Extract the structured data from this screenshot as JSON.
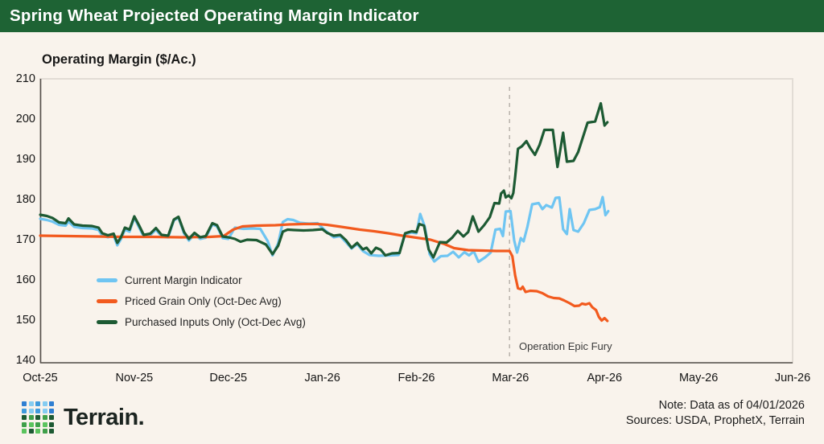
{
  "header": {
    "title": "Spring Wheat Projected Operating Margin Indicator",
    "bg_color": "#1e6334"
  },
  "chart_data": {
    "type": "line",
    "title": "Spring Wheat Projected Operating Margin Indicator",
    "ylabel": "Operating Margin ($/Ac.)",
    "xlabel": "",
    "ylim": [
      140,
      210
    ],
    "y_ticks": [
      210,
      200,
      190,
      180,
      170,
      160,
      150,
      140
    ],
    "x_tick_labels": [
      "Oct-25",
      "Nov-25",
      "Dec-25",
      "Jan-26",
      "Feb-26",
      "Mar-26",
      "Apr-26",
      "May-26",
      "Jun-26"
    ],
    "x_unit": "month index, Oct-25 = 0",
    "xlim": [
      0,
      8
    ],
    "grid": false,
    "legend_position": "inside lower-left",
    "annotation": {
      "label": "Operation Epic Fury",
      "x_month": 4.99,
      "line_style": "dashed",
      "line_color": "#b8b2ab"
    },
    "series": [
      {
        "name": "Current Margin Indicator",
        "color": "#6fc5f2",
        "points": [
          [
            0.0,
            175.6
          ],
          [
            0.07,
            175.3
          ],
          [
            0.13,
            174.9
          ],
          [
            0.2,
            174.1
          ],
          [
            0.27,
            173.9
          ],
          [
            0.3,
            174.9
          ],
          [
            0.36,
            173.6
          ],
          [
            0.45,
            173.3
          ],
          [
            0.55,
            173.2
          ],
          [
            0.62,
            172.8
          ],
          [
            0.66,
            171.4
          ],
          [
            0.72,
            171.0
          ],
          [
            0.78,
            171.4
          ],
          [
            0.82,
            169.0
          ],
          [
            0.86,
            170.6
          ],
          [
            0.9,
            172.9
          ],
          [
            0.95,
            172.4
          ],
          [
            1.0,
            175.9
          ],
          [
            1.05,
            173.5
          ],
          [
            1.1,
            171.2
          ],
          [
            1.17,
            171.5
          ],
          [
            1.23,
            172.9
          ],
          [
            1.29,
            171.2
          ],
          [
            1.36,
            171.0
          ],
          [
            1.42,
            175.2
          ],
          [
            1.47,
            175.9
          ],
          [
            1.53,
            171.9
          ],
          [
            1.58,
            170.2
          ],
          [
            1.64,
            171.7
          ],
          [
            1.7,
            170.6
          ],
          [
            1.76,
            170.9
          ],
          [
            1.83,
            174.2
          ],
          [
            1.88,
            173.7
          ],
          [
            1.94,
            170.8
          ],
          [
            2.0,
            170.6
          ],
          [
            2.07,
            173.4
          ],
          [
            2.16,
            173.1
          ],
          [
            2.25,
            173.2
          ],
          [
            2.34,
            173.1
          ],
          [
            2.42,
            170.0
          ],
          [
            2.47,
            166.5
          ],
          [
            2.53,
            169.5
          ],
          [
            2.58,
            174.8
          ],
          [
            2.63,
            175.5
          ],
          [
            2.69,
            175.3
          ],
          [
            2.76,
            174.6
          ],
          [
            2.86,
            174.4
          ],
          [
            2.95,
            174.5
          ],
          [
            3.01,
            173.1
          ],
          [
            3.06,
            172.1
          ],
          [
            3.12,
            171.0
          ],
          [
            3.19,
            171.3
          ],
          [
            3.25,
            169.8
          ],
          [
            3.31,
            168.2
          ],
          [
            3.37,
            169.3
          ],
          [
            3.43,
            167.6
          ],
          [
            3.5,
            166.6
          ],
          [
            3.6,
            166.4
          ],
          [
            3.72,
            166.5
          ],
          [
            3.81,
            166.6
          ],
          [
            3.88,
            171.8
          ],
          [
            3.95,
            172.2
          ],
          [
            4.0,
            172.0
          ],
          [
            4.04,
            176.8
          ],
          [
            4.09,
            173.6
          ],
          [
            4.14,
            166.8
          ],
          [
            4.19,
            165.0
          ],
          [
            4.26,
            166.3
          ],
          [
            4.33,
            166.4
          ],
          [
            4.39,
            167.4
          ],
          [
            4.45,
            166.0
          ],
          [
            4.51,
            167.3
          ],
          [
            4.56,
            166.5
          ],
          [
            4.61,
            167.5
          ],
          [
            4.66,
            164.9
          ],
          [
            4.73,
            166.0
          ],
          [
            4.79,
            167.2
          ],
          [
            4.84,
            172.9
          ],
          [
            4.89,
            173.1
          ],
          [
            4.92,
            171.3
          ],
          [
            4.95,
            177.4
          ],
          [
            5.0,
            177.5
          ],
          [
            5.04,
            170.2
          ],
          [
            5.07,
            167.2
          ],
          [
            5.11,
            170.8
          ],
          [
            5.14,
            170.0
          ],
          [
            5.18,
            173.6
          ],
          [
            5.23,
            179.2
          ],
          [
            5.3,
            179.5
          ],
          [
            5.34,
            178.0
          ],
          [
            5.38,
            179.0
          ],
          [
            5.44,
            178.4
          ],
          [
            5.48,
            180.8
          ],
          [
            5.52,
            180.9
          ],
          [
            5.56,
            173.0
          ],
          [
            5.6,
            171.8
          ],
          [
            5.63,
            178.0
          ],
          [
            5.67,
            172.8
          ],
          [
            5.72,
            172.4
          ],
          [
            5.78,
            174.5
          ],
          [
            5.84,
            177.8
          ],
          [
            5.9,
            178.0
          ],
          [
            5.95,
            178.5
          ],
          [
            5.98,
            181.0
          ],
          [
            6.01,
            176.5
          ],
          [
            6.04,
            177.5
          ]
        ]
      },
      {
        "name": "Priced Grain Only (Oct-Dec Avg)",
        "color": "#f25a1e",
        "points": [
          [
            0.0,
            171.4
          ],
          [
            0.3,
            171.3
          ],
          [
            0.6,
            171.2
          ],
          [
            0.9,
            171.1
          ],
          [
            1.2,
            171.1
          ],
          [
            1.5,
            171.0
          ],
          [
            1.8,
            171.1
          ],
          [
            1.95,
            171.3
          ],
          [
            2.05,
            172.9
          ],
          [
            2.15,
            173.7
          ],
          [
            2.3,
            173.9
          ],
          [
            2.5,
            174.0
          ],
          [
            2.65,
            174.2
          ],
          [
            2.8,
            174.3
          ],
          [
            2.95,
            174.3
          ],
          [
            3.05,
            174.1
          ],
          [
            3.2,
            173.6
          ],
          [
            3.4,
            172.9
          ],
          [
            3.55,
            172.5
          ],
          [
            3.7,
            172.0
          ],
          [
            3.85,
            171.4
          ],
          [
            4.0,
            170.9
          ],
          [
            4.15,
            170.4
          ],
          [
            4.3,
            169.3
          ],
          [
            4.4,
            168.3
          ],
          [
            4.55,
            167.8
          ],
          [
            4.7,
            167.7
          ],
          [
            4.85,
            167.6
          ],
          [
            4.99,
            167.6
          ],
          [
            5.02,
            166.3
          ],
          [
            5.05,
            161.5
          ],
          [
            5.08,
            158.3
          ],
          [
            5.11,
            158.1
          ],
          [
            5.13,
            158.7
          ],
          [
            5.16,
            157.4
          ],
          [
            5.21,
            157.7
          ],
          [
            5.28,
            157.6
          ],
          [
            5.34,
            157.1
          ],
          [
            5.4,
            156.3
          ],
          [
            5.46,
            155.9
          ],
          [
            5.52,
            155.8
          ],
          [
            5.57,
            155.3
          ],
          [
            5.63,
            154.6
          ],
          [
            5.68,
            153.9
          ],
          [
            5.73,
            154.0
          ],
          [
            5.76,
            154.5
          ],
          [
            5.8,
            154.3
          ],
          [
            5.84,
            154.6
          ],
          [
            5.87,
            153.6
          ],
          [
            5.91,
            152.9
          ],
          [
            5.94,
            151.2
          ],
          [
            5.97,
            150.3
          ],
          [
            6.0,
            150.9
          ],
          [
            6.03,
            150.2
          ]
        ]
      },
      {
        "name": "Purchased Inputs Only (Oct-Dec Avg)",
        "color": "#1d5a33",
        "points": [
          [
            0.0,
            176.6
          ],
          [
            0.07,
            176.3
          ],
          [
            0.13,
            175.8
          ],
          [
            0.2,
            174.7
          ],
          [
            0.27,
            174.5
          ],
          [
            0.3,
            175.7
          ],
          [
            0.36,
            174.2
          ],
          [
            0.45,
            173.9
          ],
          [
            0.55,
            173.8
          ],
          [
            0.62,
            173.4
          ],
          [
            0.66,
            172.0
          ],
          [
            0.72,
            171.5
          ],
          [
            0.78,
            171.9
          ],
          [
            0.82,
            169.6
          ],
          [
            0.86,
            171.1
          ],
          [
            0.9,
            173.4
          ],
          [
            0.95,
            172.9
          ],
          [
            1.0,
            176.2
          ],
          [
            1.05,
            174.0
          ],
          [
            1.1,
            171.6
          ],
          [
            1.17,
            171.9
          ],
          [
            1.23,
            173.3
          ],
          [
            1.29,
            171.6
          ],
          [
            1.36,
            171.4
          ],
          [
            1.42,
            175.4
          ],
          [
            1.47,
            176.1
          ],
          [
            1.53,
            172.3
          ],
          [
            1.58,
            170.6
          ],
          [
            1.64,
            172.1
          ],
          [
            1.7,
            171.0
          ],
          [
            1.76,
            171.3
          ],
          [
            1.83,
            174.5
          ],
          [
            1.88,
            174.0
          ],
          [
            1.94,
            171.2
          ],
          [
            2.0,
            171.0
          ],
          [
            2.07,
            170.6
          ],
          [
            2.13,
            169.9
          ],
          [
            2.2,
            170.4
          ],
          [
            2.3,
            170.3
          ],
          [
            2.4,
            169.2
          ],
          [
            2.47,
            166.8
          ],
          [
            2.53,
            168.9
          ],
          [
            2.58,
            172.4
          ],
          [
            2.63,
            172.9
          ],
          [
            2.7,
            172.8
          ],
          [
            2.8,
            172.7
          ],
          [
            2.9,
            172.8
          ],
          [
            3.0,
            173.0
          ],
          [
            3.05,
            172.1
          ],
          [
            3.12,
            171.4
          ],
          [
            3.19,
            171.6
          ],
          [
            3.25,
            170.3
          ],
          [
            3.31,
            168.4
          ],
          [
            3.37,
            169.6
          ],
          [
            3.43,
            168.0
          ],
          [
            3.47,
            168.4
          ],
          [
            3.52,
            167.0
          ],
          [
            3.57,
            168.4
          ],
          [
            3.62,
            167.9
          ],
          [
            3.67,
            166.5
          ],
          [
            3.74,
            167.0
          ],
          [
            3.82,
            167.1
          ],
          [
            3.88,
            172.0
          ],
          [
            3.95,
            172.5
          ],
          [
            4.0,
            172.3
          ],
          [
            4.03,
            174.3
          ],
          [
            4.08,
            173.9
          ],
          [
            4.13,
            168.0
          ],
          [
            4.18,
            166.0
          ],
          [
            4.25,
            169.8
          ],
          [
            4.32,
            169.7
          ],
          [
            4.38,
            170.9
          ],
          [
            4.44,
            172.6
          ],
          [
            4.5,
            171.2
          ],
          [
            4.55,
            172.3
          ],
          [
            4.6,
            176.2
          ],
          [
            4.66,
            172.4
          ],
          [
            4.72,
            174.0
          ],
          [
            4.78,
            176.0
          ],
          [
            4.83,
            179.5
          ],
          [
            4.88,
            179.4
          ],
          [
            4.9,
            181.9
          ],
          [
            4.93,
            182.6
          ],
          [
            4.95,
            180.9
          ],
          [
            4.98,
            181.4
          ],
          [
            5.01,
            180.7
          ],
          [
            5.03,
            182.0
          ],
          [
            5.05,
            186.0
          ],
          [
            5.08,
            193.0
          ],
          [
            5.12,
            193.6
          ],
          [
            5.17,
            194.9
          ],
          [
            5.21,
            193.2
          ],
          [
            5.26,
            191.5
          ],
          [
            5.31,
            194.0
          ],
          [
            5.36,
            197.7
          ],
          [
            5.45,
            197.7
          ],
          [
            5.5,
            188.5
          ],
          [
            5.56,
            197.0
          ],
          [
            5.6,
            189.8
          ],
          [
            5.67,
            190.0
          ],
          [
            5.72,
            192.2
          ],
          [
            5.82,
            199.5
          ],
          [
            5.9,
            199.8
          ],
          [
            5.96,
            204.3
          ],
          [
            6.0,
            198.8
          ],
          [
            6.03,
            199.6
          ]
        ]
      }
    ]
  },
  "footer": {
    "brand": "Terrain.",
    "note_line1": "Note: Data as of 04/01/2026",
    "note_line2": "Sources: USDA, ProphetX, Terrain",
    "logo_grid": [
      [
        "#2f7fd2",
        "#85ccf1",
        "#3f9bdc",
        "#85ccf1",
        "#2f7fd2"
      ],
      [
        "#3f9bdc",
        "#85ccf1",
        "#3f9bdc",
        "#85ccf1",
        "#2f7fd2"
      ],
      [
        "#1d5a33",
        "#3fa04a",
        "#1d5a33",
        "#3fa04a",
        "#1d5a33"
      ],
      [
        "#3fa04a",
        "#5bc45e",
        "#3fa04a",
        "#5bc45e",
        "#1d5a33"
      ],
      [
        "#5bc45e",
        "#1d5a33",
        "#5bc45e",
        "#3fa04a",
        "#1d5a33"
      ]
    ]
  }
}
